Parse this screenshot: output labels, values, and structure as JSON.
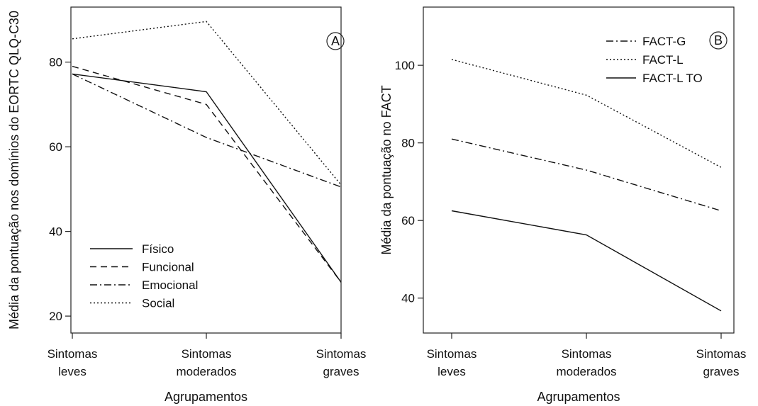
{
  "chart_data": [
    {
      "type": "line",
      "panel_label": "A",
      "categories": [
        [
          "Sintomas",
          "leves"
        ],
        [
          "Sintomas",
          "moderados"
        ],
        [
          "Sintomas",
          "graves"
        ]
      ],
      "xlabel": "Agrupamentos",
      "ylabel": "Média da pontuação nos domínios do EORTC QLQ-C30",
      "ylim": [
        16,
        93
      ],
      "yticks": [
        20,
        40,
        60,
        80
      ],
      "legend_position": "bottom-left",
      "grid": false,
      "series": [
        {
          "name": "Físico",
          "style": "solid",
          "values": [
            77.2,
            73.0,
            28.0
          ]
        },
        {
          "name": "Funcional",
          "style": "dashed",
          "values": [
            79.0,
            70.0,
            28.0
          ]
        },
        {
          "name": "Emocional",
          "style": "dashdot",
          "values": [
            77.2,
            62.2,
            50.5
          ]
        },
        {
          "name": "Social",
          "style": "dotted",
          "values": [
            85.5,
            89.6,
            51.0
          ]
        }
      ]
    },
    {
      "type": "line",
      "panel_label": "B",
      "categories": [
        [
          "Sintomas",
          "leves"
        ],
        [
          "Sintomas",
          "moderados"
        ],
        [
          "Sintomas",
          "graves"
        ]
      ],
      "xlabel": "Agrupamentos",
      "ylabel": "Média da pontuação no FACT",
      "ylim": [
        31,
        115
      ],
      "yticks": [
        40,
        60,
        80,
        100
      ],
      "legend_position": "top-right",
      "grid": false,
      "series": [
        {
          "name": "FACT-G",
          "style": "dashdot",
          "values": [
            81.0,
            73.0,
            62.5
          ]
        },
        {
          "name": "FACT-L",
          "style": "dotted",
          "values": [
            101.5,
            92.3,
            73.7
          ]
        },
        {
          "name": "FACT-L TO",
          "style": "solid",
          "values": [
            62.5,
            56.3,
            36.7
          ]
        }
      ]
    }
  ]
}
